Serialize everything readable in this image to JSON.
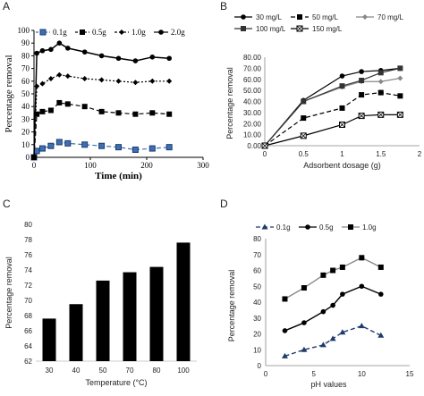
{
  "panels": {
    "A": {
      "letter": "A"
    },
    "B": {
      "letter": "B"
    },
    "C": {
      "letter": "C"
    },
    "D": {
      "letter": "D"
    }
  },
  "chart_data": [
    {
      "id": "A",
      "type": "line",
      "xlabel": "Time (min)",
      "ylabel": "Percentage removal",
      "xlim": [
        0,
        300
      ],
      "ylim": [
        0,
        100
      ],
      "xticks": [
        "0",
        "100",
        "200",
        "300"
      ],
      "yticks": [
        "0",
        "10",
        "20",
        "30",
        "40",
        "50",
        "60",
        "70",
        "80",
        "90",
        "100"
      ],
      "legend_position": "top",
      "x": [
        0,
        5,
        15,
        30,
        45,
        60,
        90,
        120,
        150,
        180,
        210,
        240
      ],
      "series": [
        {
          "name": "0.1g",
          "values": [
            0,
            5,
            7,
            9,
            12,
            11,
            10,
            9,
            8,
            6,
            7,
            8
          ],
          "color": "#1f3b6b",
          "marker": "square-open"
        },
        {
          "name": "0.5g",
          "values": [
            0,
            34,
            36,
            37,
            43,
            42,
            40,
            36,
            35,
            34,
            35,
            34
          ],
          "color": "#000000",
          "marker": "square"
        },
        {
          "name": "1.0g",
          "values": [
            0,
            56,
            58,
            62,
            65,
            64,
            62,
            61,
            60,
            59,
            60,
            60
          ],
          "color": "#000000",
          "marker": "diamond"
        },
        {
          "name": "2.0g",
          "values": [
            0,
            82,
            84,
            85,
            90,
            86,
            83,
            80,
            78,
            76,
            79,
            78
          ],
          "color": "#000000",
          "marker": "circle"
        }
      ]
    },
    {
      "id": "B",
      "type": "line",
      "xlabel": "Adsorbent dosage (g)",
      "ylabel": "Percentage removal",
      "xlim": [
        0,
        2
      ],
      "ylim": [
        0,
        80
      ],
      "xticks": [
        "0",
        "0.5",
        "1",
        "1.5",
        "2"
      ],
      "yticks": [
        "0.00",
        "10.00",
        "20.00",
        "30.00",
        "40.00",
        "50.00",
        "60.00",
        "70.00",
        "80.00"
      ],
      "legend_position": "top",
      "x": [
        0,
        0.5,
        1.0,
        1.25,
        1.5,
        1.75
      ],
      "series": [
        {
          "name": "30 mg/L",
          "values": [
            0,
            41,
            63,
            67,
            68,
            70
          ],
          "color": "#000000",
          "marker": "circle",
          "dash": ""
        },
        {
          "name": "50 mg/L",
          "values": [
            0,
            25,
            34,
            46,
            48,
            45
          ],
          "color": "#000000",
          "marker": "square",
          "dash": "5,3"
        },
        {
          "name": "70 mg/L",
          "values": [
            0,
            40,
            53,
            58,
            58,
            61
          ],
          "color": "#888888",
          "marker": "diamond",
          "dash": ""
        },
        {
          "name": "100 mg/L",
          "values": [
            0,
            40,
            54,
            59,
            66,
            70
          ],
          "color": "#333333",
          "marker": "square",
          "dash": ""
        },
        {
          "name": "150 mg/L",
          "values": [
            0,
            9,
            19,
            27,
            28,
            28
          ],
          "color": "#000000",
          "marker": "xbox",
          "dash": ""
        }
      ]
    },
    {
      "id": "C",
      "type": "bar",
      "xlabel": "Temperature (°C)",
      "ylabel": "Percentage removal",
      "ylim": [
        62,
        80
      ],
      "categories": [
        "30",
        "40",
        "50",
        "70",
        "80",
        "100"
      ],
      "values": [
        67.6,
        69.5,
        72.6,
        73.7,
        74.4,
        77.6
      ],
      "yticks": [
        "62",
        "64",
        "66",
        "68",
        "70",
        "72",
        "74",
        "76",
        "78",
        "80"
      ],
      "color": "#000000"
    },
    {
      "id": "D",
      "type": "line",
      "xlabel": "pH values",
      "ylabel": "Percentage removal",
      "xlim": [
        0,
        15
      ],
      "ylim": [
        0,
        80
      ],
      "xticks": [
        "0",
        "5",
        "10",
        "15"
      ],
      "yticks": [
        "0",
        "10",
        "20",
        "30",
        "40",
        "50",
        "60",
        "70",
        "80"
      ],
      "legend_position": "top",
      "x": [
        2,
        4,
        6,
        7,
        8,
        10,
        12
      ],
      "series": [
        {
          "name": "0.1g",
          "values": [
            6,
            10,
            13,
            17,
            21,
            25,
            19
          ],
          "color": "#1f3b6b",
          "marker": "triangle",
          "dash": "5,3"
        },
        {
          "name": "0.5g",
          "values": [
            22,
            27,
            34,
            38,
            45,
            50,
            45
          ],
          "color": "#000000",
          "marker": "circle",
          "dash": ""
        },
        {
          "name": "1.0g",
          "values": [
            42,
            49,
            57,
            60,
            62,
            68,
            62
          ],
          "color": "#888888",
          "marker": "square",
          "dash": ""
        }
      ]
    }
  ]
}
